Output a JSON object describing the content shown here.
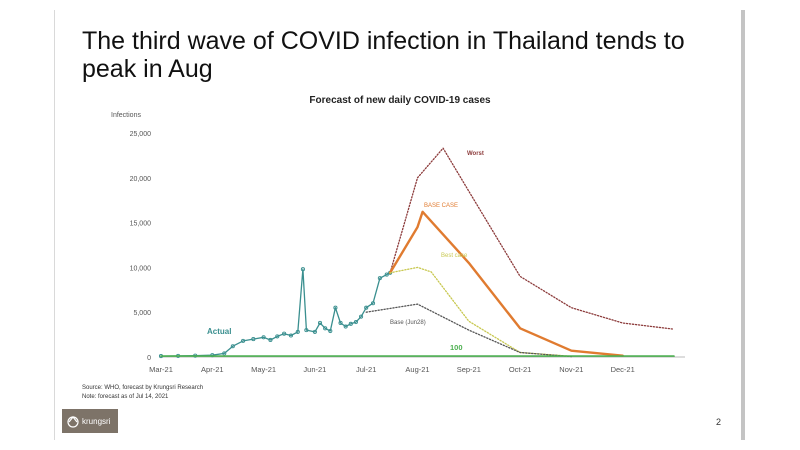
{
  "slide": {
    "title": "The third wave of COVID infection in Thailand tends to peak in Aug",
    "source_line": "Source: WHO, forecast by Krungsri Research",
    "note_line": "Note: forecast as of Jul 14, 2021",
    "logo_text": "krungsri",
    "page_number": "2"
  },
  "chart_data": {
    "type": "line",
    "title": "Forecast of new daily COVID-19 cases",
    "ylabel": "Infections",
    "xlabel": "",
    "ylim": [
      0,
      25000
    ],
    "yticks": [
      0,
      5000,
      10000,
      15000,
      20000,
      25000
    ],
    "ytick_labels": [
      "0",
      "5,000",
      "10,000",
      "15,000",
      "20,000",
      "25,000"
    ],
    "x_categories": [
      "Mar-21",
      "Apr-21",
      "May-21",
      "Jun-21",
      "Jul-21",
      "Aug-21",
      "Sep-21",
      "Oct-21",
      "Nov-21",
      "Dec-21"
    ],
    "grid": false,
    "series": [
      {
        "name": "Actual",
        "color": "#3a8f8f",
        "style": "solid-markers",
        "points": [
          [
            "Mar-21",
            100
          ],
          [
            "Mar-21+10d",
            120
          ],
          [
            "Mar-21+20d",
            150
          ],
          [
            "Apr-21",
            200
          ],
          [
            "Apr-21+7d",
            400
          ],
          [
            "Apr-21+12d",
            1200
          ],
          [
            "Apr-21+18d",
            1800
          ],
          [
            "Apr-21+24d",
            2000
          ],
          [
            "May-21",
            2200
          ],
          [
            "May-21+4d",
            1900
          ],
          [
            "May-21+8d",
            2300
          ],
          [
            "May-21+12d",
            2600
          ],
          [
            "May-21+16d",
            2400
          ],
          [
            "May-21+20d",
            2800
          ],
          [
            "May-21+23d",
            9800
          ],
          [
            "May-21+25d",
            3000
          ],
          [
            "Jun-21",
            2800
          ],
          [
            "Jun-21+3d",
            3800
          ],
          [
            "Jun-21+6d",
            3200
          ],
          [
            "Jun-21+9d",
            2900
          ],
          [
            "Jun-21+12d",
            5500
          ],
          [
            "Jun-21+15d",
            3800
          ],
          [
            "Jun-21+18d",
            3400
          ],
          [
            "Jun-21+21d",
            3700
          ],
          [
            "Jun-21+24d",
            3900
          ],
          [
            "Jun-21+27d",
            4500
          ],
          [
            "Jul-21",
            5500
          ],
          [
            "Jul-21+4d",
            6000
          ],
          [
            "Jul-21+8d",
            8800
          ],
          [
            "Jul-21+12d",
            9200
          ],
          [
            "Jul-21+14d",
            9400
          ]
        ]
      },
      {
        "name": "Worst",
        "color": "#8c3b3b",
        "style": "dotted",
        "points": [
          [
            "Jul-21+14d",
            9400
          ],
          [
            "Aug-21",
            20000
          ],
          [
            "Aug-21+15d",
            23300
          ],
          [
            "Sep-21",
            18500
          ],
          [
            "Oct-21",
            9000
          ],
          [
            "Nov-21",
            5500
          ],
          [
            "Dec-21",
            3800
          ],
          [
            "Dec-21+30d",
            3100
          ]
        ]
      },
      {
        "name": "BASE CASE",
        "color": "#e07b30",
        "style": "solid",
        "points": [
          [
            "Jul-21+14d",
            9400
          ],
          [
            "Aug-21",
            14500
          ],
          [
            "Aug-21+3d",
            16200
          ],
          [
            "Sep-21",
            10500
          ],
          [
            "Oct-21",
            3200
          ],
          [
            "Nov-21",
            700
          ],
          [
            "Dec-21",
            150
          ]
        ]
      },
      {
        "name": "Best case",
        "color": "#c8c850",
        "style": "dotted",
        "points": [
          [
            "Jul-21+14d",
            9400
          ],
          [
            "Aug-21",
            10000
          ],
          [
            "Aug-21+8d",
            9500
          ],
          [
            "Sep-21",
            4000
          ],
          [
            "Oct-21",
            500
          ],
          [
            "Nov-21",
            80
          ]
        ]
      },
      {
        "name": "Base (Jun28)",
        "color": "#555555",
        "style": "dotted",
        "points": [
          [
            "Jul-21",
            5000
          ],
          [
            "Aug-21",
            5900
          ],
          [
            "Sep-21",
            3000
          ],
          [
            "Oct-21",
            500
          ],
          [
            "Nov-21",
            50
          ]
        ]
      },
      {
        "name": "100",
        "color": "#4caf50",
        "style": "solid",
        "points": [
          [
            "Mar-21",
            100
          ],
          [
            "Dec-21+30d",
            100
          ]
        ]
      }
    ]
  }
}
